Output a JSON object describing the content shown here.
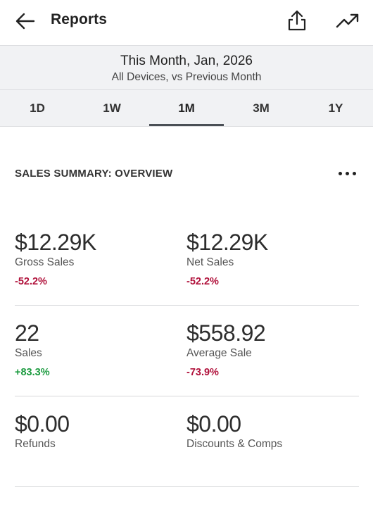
{
  "header": {
    "title": "Reports",
    "back_icon": "arrow-left-icon",
    "share_icon": "share-icon",
    "trend_icon": "trending-up-icon"
  },
  "period": {
    "main": "This Month, Jan, 2026",
    "sub": "All Devices, vs Previous Month"
  },
  "tabs": [
    {
      "label": "1D"
    },
    {
      "label": "1W"
    },
    {
      "label": "1M",
      "active": true
    },
    {
      "label": "3M"
    },
    {
      "label": "1Y"
    }
  ],
  "summary": {
    "heading": "SALES SUMMARY: OVERVIEW",
    "more_icon": "more-horizontal-icon",
    "metrics": [
      {
        "value": "$12.29K",
        "label": "Gross Sales",
        "change": "-52.2%",
        "trend": "negative"
      },
      {
        "value": "$12.29K",
        "label": "Net Sales",
        "change": "-52.2%",
        "trend": "negative"
      },
      {
        "value": "22",
        "label": "Sales",
        "change": "+83.3%",
        "trend": "positive"
      },
      {
        "value": "$558.92",
        "label": "Average Sale",
        "change": "-73.9%",
        "trend": "negative"
      },
      {
        "value": "$0.00",
        "label": "Refunds",
        "change": "",
        "trend": "none"
      },
      {
        "value": "$0.00",
        "label": "Discounts & Comps",
        "change": "",
        "trend": "none"
      }
    ]
  },
  "colors": {
    "negative": "#b0103a",
    "positive": "#1a9a3e",
    "band_bg": "#f1f2f4"
  }
}
